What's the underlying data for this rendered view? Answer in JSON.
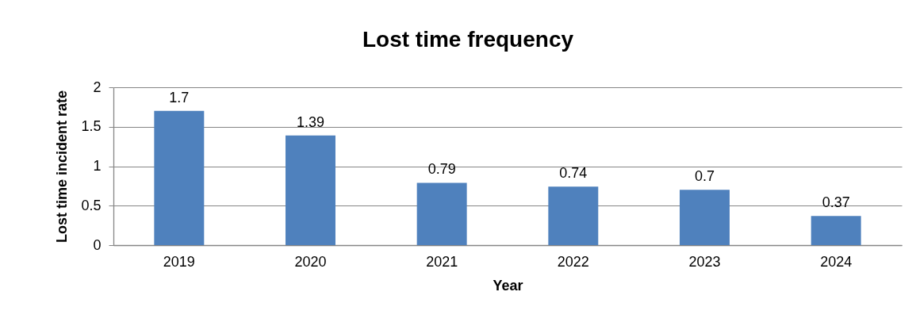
{
  "chart_data": {
    "type": "bar",
    "title": "Lost time frequency",
    "xlabel": "Year",
    "ylabel": "Lost time incident rate",
    "categories": [
      "2019",
      "2020",
      "2021",
      "2022",
      "2023",
      "2024"
    ],
    "values": [
      1.7,
      1.39,
      0.79,
      0.74,
      0.7,
      0.37
    ],
    "color": "#4f81bd",
    "ylim": [
      0,
      2
    ],
    "yticks": [
      0,
      0.5,
      1,
      1.5,
      2
    ],
    "grid": "y",
    "data_labels": true
  }
}
